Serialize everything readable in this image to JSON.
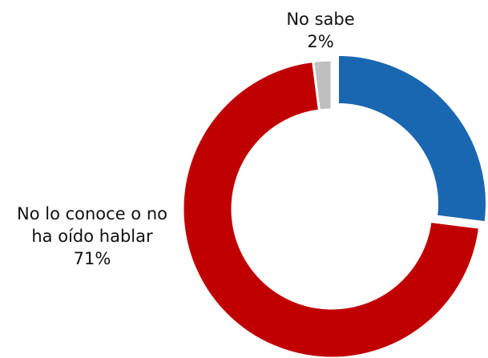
{
  "chart_data": {
    "type": "donut",
    "categories": [
      null,
      "No lo conoce o no ha oído hablar",
      "No sabe"
    ],
    "values": [
      27,
      71,
      2
    ],
    "value_labels": [
      null,
      "71%",
      "2%"
    ],
    "colors": [
      "#1a67b1",
      "#c00000",
      "#bfbfbf"
    ]
  }
}
